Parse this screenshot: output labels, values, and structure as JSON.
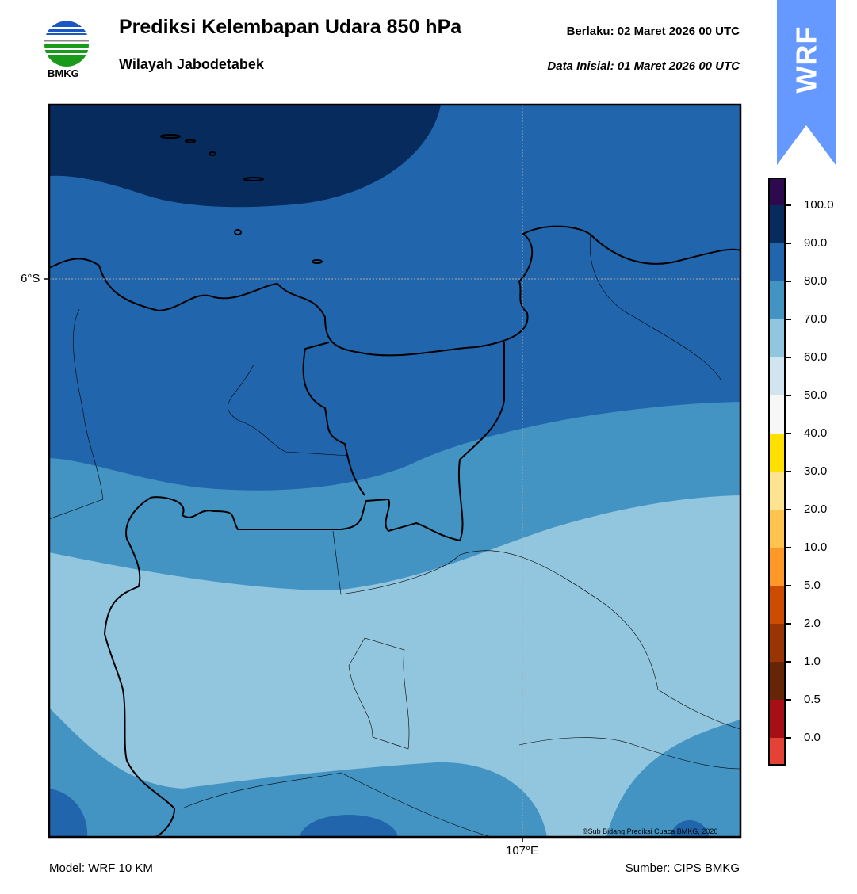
{
  "header": {
    "title": "Prediksi Kelembapan Udara 850 hPa",
    "subtitle": "Wilayah Jabodetabek",
    "valid_label": "Berlaku:  02 Maret 2026 00 UTC",
    "init_label": "Data Inisial:  01 Maret 2026 00 UTC",
    "logo_text": "BMKG",
    "badge": "WRF",
    "badge_color": "#6699ff"
  },
  "map": {
    "lat_label": "6°S",
    "lon_label": "107°E",
    "copyright": "©Sub Bidang Prediksi Cuaca BMKG, 2026",
    "fill_colors": {
      "90-100": "#062b5c",
      "80-90": "#2166ac",
      "70-80": "#4393c3",
      "60-70": "#92c5de"
    }
  },
  "colorbar": {
    "ticks": [
      "100.0",
      "90.0",
      "80.0",
      "70.0",
      "60.0",
      "50.0",
      "40.0",
      "30.0",
      "20.0",
      "10.0",
      "5.0",
      "2.0",
      "1.0",
      "0.5",
      "0.0"
    ],
    "colors": [
      "#2d0a4e",
      "#062b5c",
      "#2166ac",
      "#4393c3",
      "#92c5de",
      "#d1e5f0",
      "#f7f7f7",
      "#ffe000",
      "#fee391",
      "#fec44f",
      "#fe9929",
      "#cc4c02",
      "#993404",
      "#662506",
      "#a50f15",
      "#e34234"
    ]
  },
  "footer": {
    "model": "Model: WRF 10 KM",
    "source": "Sumber: CIPS BMKG"
  }
}
